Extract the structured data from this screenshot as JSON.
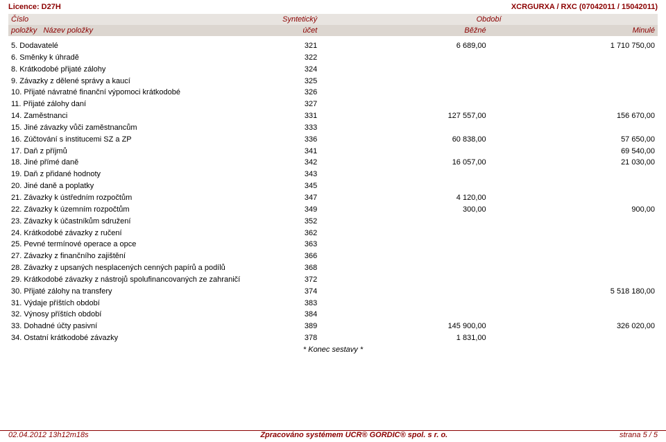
{
  "top": {
    "licence": "Licence: D27H",
    "doc_ref": "XCRGURXA / RXC  (07042011 / 15042011)"
  },
  "header": {
    "r1": {
      "cislo": "Číslo",
      "synteticky": "Syntetický",
      "obdobi": "Období"
    },
    "r2": {
      "polozky": "položky",
      "nazev": "Název položky",
      "ucet": "účet",
      "bezne": "Běžné",
      "minule": "Minulé"
    }
  },
  "rows": [
    {
      "n": "5.",
      "label": "Dodavatelé",
      "ucet": "321",
      "bezne": "6 689,00",
      "minule": "1 710 750,00"
    },
    {
      "n": "6.",
      "label": "Směnky k úhradě",
      "ucet": "322",
      "bezne": "",
      "minule": ""
    },
    {
      "n": "8.",
      "label": "Krátkodobé přijaté zálohy",
      "ucet": "324",
      "bezne": "",
      "minule": ""
    },
    {
      "n": "9.",
      "label": "Závazky z dělené správy a kaucí",
      "ucet": "325",
      "bezne": "",
      "minule": ""
    },
    {
      "n": "10.",
      "label": "Přijaté návratné finanční výpomoci krátkodobé",
      "ucet": "326",
      "bezne": "",
      "minule": ""
    },
    {
      "n": "11.",
      "label": "Přijaté zálohy daní",
      "ucet": "327",
      "bezne": "",
      "minule": ""
    },
    {
      "n": "14.",
      "label": "Zaměstnanci",
      "ucet": "331",
      "bezne": "127 557,00",
      "minule": "156 670,00"
    },
    {
      "n": "15.",
      "label": "Jiné závazky vůči zaměstnancům",
      "ucet": "333",
      "bezne": "",
      "minule": ""
    },
    {
      "n": "16.",
      "label": "Zúčtování s institucemi SZ a ZP",
      "ucet": "336",
      "bezne": "60 838,00",
      "minule": "57 650,00"
    },
    {
      "n": "17.",
      "label": "Daň z příjmů",
      "ucet": "341",
      "bezne": "",
      "minule": "69 540,00"
    },
    {
      "n": "18.",
      "label": "Jiné přímé daně",
      "ucet": "342",
      "bezne": "16 057,00",
      "minule": "21 030,00"
    },
    {
      "n": "19.",
      "label": "Daň z přidané hodnoty",
      "ucet": "343",
      "bezne": "",
      "minule": ""
    },
    {
      "n": "20.",
      "label": "Jiné daně a poplatky",
      "ucet": "345",
      "bezne": "",
      "minule": ""
    },
    {
      "n": "21.",
      "label": "Závazky k ústředním rozpočtům",
      "ucet": "347",
      "bezne": "4 120,00",
      "minule": ""
    },
    {
      "n": "22.",
      "label": "Závazky k územním rozpočtům",
      "ucet": "349",
      "bezne": "300,00",
      "minule": "900,00"
    },
    {
      "n": "23.",
      "label": "Závazky k účastníkům sdružení",
      "ucet": "352",
      "bezne": "",
      "minule": ""
    },
    {
      "n": "24.",
      "label": "Krátkodobé závazky z ručení",
      "ucet": "362",
      "bezne": "",
      "minule": ""
    },
    {
      "n": "25.",
      "label": "Pevné termínové operace a opce",
      "ucet": "363",
      "bezne": "",
      "minule": ""
    },
    {
      "n": "27.",
      "label": "Závazky z finančního zajištění",
      "ucet": "366",
      "bezne": "",
      "minule": ""
    },
    {
      "n": "28.",
      "label": "Závazky z upsaných nesplacených cenných papírů a podílů",
      "ucet": "368",
      "bezne": "",
      "minule": ""
    },
    {
      "n": "29.",
      "label": "Krátkodobé závazky z nástrojů spolufinancovaných ze zahraničí",
      "ucet": "372",
      "bezne": "",
      "minule": ""
    },
    {
      "n": "30.",
      "label": "Přijaté zálohy na transfery",
      "ucet": "374",
      "bezne": "",
      "minule": "5 518 180,00"
    },
    {
      "n": "31.",
      "label": "Výdaje příštích období",
      "ucet": "383",
      "bezne": "",
      "minule": ""
    },
    {
      "n": "32.",
      "label": "Výnosy příštích období",
      "ucet": "384",
      "bezne": "",
      "minule": ""
    },
    {
      "n": "33.",
      "label": "Dohadné účty pasivní",
      "ucet": "389",
      "bezne": "145 900,00",
      "minule": "326 020,00"
    },
    {
      "n": "34.",
      "label": "Ostatní krátkodobé závazky",
      "ucet": "378",
      "bezne": "1 831,00",
      "minule": ""
    }
  ],
  "end_note": "* Konec sestavy *",
  "footer": {
    "left": "02.04.2012 13h12m18s",
    "mid": "Zpracováno systémem  UCR® GORDIC® spol. s  r. o.",
    "right": "strana 5 / 5"
  }
}
